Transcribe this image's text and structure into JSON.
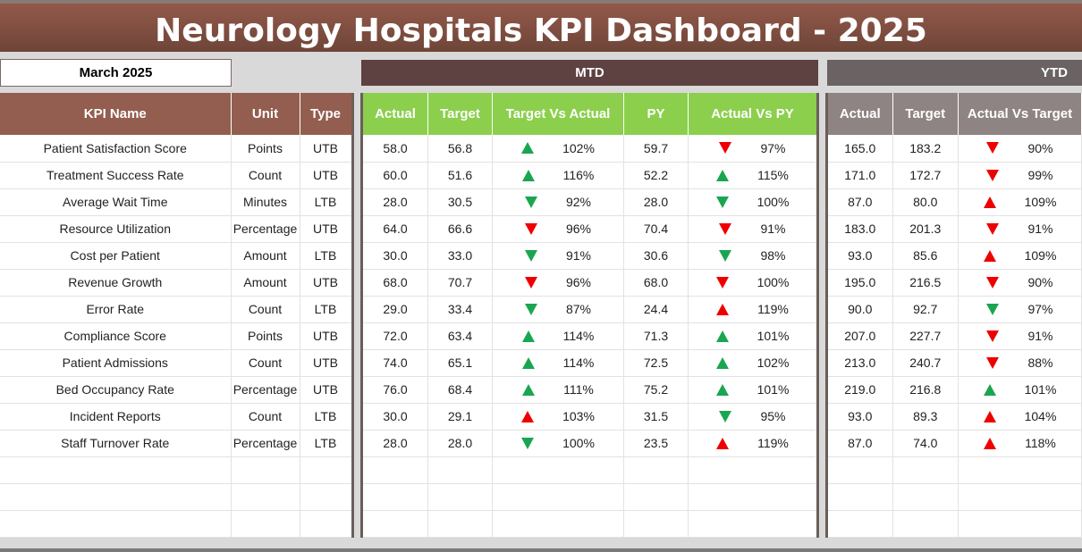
{
  "title": "Neurology Hospitals KPI Dashboard - 2025",
  "month": "March 2025",
  "mtd_label": "MTD",
  "ytd_label": "YTD",
  "headers": {
    "kpi": "KPI Name",
    "unit": "Unit",
    "type": "Type",
    "actual": "Actual",
    "target": "Target",
    "tva": "Target Vs Actual",
    "py": "PY",
    "avpy": "Actual Vs PY",
    "ytd_actual": "Actual",
    "ytd_target": "Target",
    "ytd_avt": "Actual Vs Target"
  },
  "colors": {
    "up_good": "#1aa651",
    "bad": "#e00000",
    "mtd_header": "#8ccf4d",
    "kpi_header": "#935e50",
    "ytd_header": "#8f8484"
  },
  "rows": [
    {
      "name": "Patient Satisfaction Score",
      "unit": "Points",
      "type": "UTB",
      "actual": "58.0",
      "target": "56.8",
      "tva": "102%",
      "tva_icon": "up green",
      "py": "59.7",
      "avpy": "97%",
      "avpy_icon": "down red",
      "y_actual": "165.0",
      "y_target": "183.2",
      "y_avt": "90%",
      "y_icon": "down red"
    },
    {
      "name": "Treatment Success Rate",
      "unit": "Count",
      "type": "UTB",
      "actual": "60.0",
      "target": "51.6",
      "tva": "116%",
      "tva_icon": "up green",
      "py": "52.2",
      "avpy": "115%",
      "avpy_icon": "up green",
      "y_actual": "171.0",
      "y_target": "172.7",
      "y_avt": "99%",
      "y_icon": "down red"
    },
    {
      "name": "Average Wait Time",
      "unit": "Minutes",
      "type": "LTB",
      "actual": "28.0",
      "target": "30.5",
      "tva": "92%",
      "tva_icon": "down green",
      "py": "28.0",
      "avpy": "100%",
      "avpy_icon": "down green",
      "y_actual": "87.0",
      "y_target": "80.0",
      "y_avt": "109%",
      "y_icon": "up red"
    },
    {
      "name": "Resource Utilization",
      "unit": "Percentage",
      "type": "UTB",
      "actual": "64.0",
      "target": "66.6",
      "tva": "96%",
      "tva_icon": "down red",
      "py": "70.4",
      "avpy": "91%",
      "avpy_icon": "down red",
      "y_actual": "183.0",
      "y_target": "201.3",
      "y_avt": "91%",
      "y_icon": "down red"
    },
    {
      "name": "Cost per Patient",
      "unit": "Amount",
      "type": "LTB",
      "actual": "30.0",
      "target": "33.0",
      "tva": "91%",
      "tva_icon": "down green",
      "py": "30.6",
      "avpy": "98%",
      "avpy_icon": "down green",
      "y_actual": "93.0",
      "y_target": "85.6",
      "y_avt": "109%",
      "y_icon": "up red"
    },
    {
      "name": "Revenue Growth",
      "unit": "Amount",
      "type": "UTB",
      "actual": "68.0",
      "target": "70.7",
      "tva": "96%",
      "tva_icon": "down red",
      "py": "68.0",
      "avpy": "100%",
      "avpy_icon": "down red",
      "y_actual": "195.0",
      "y_target": "216.5",
      "y_avt": "90%",
      "y_icon": "down red"
    },
    {
      "name": "Error Rate",
      "unit": "Count",
      "type": "LTB",
      "actual": "29.0",
      "target": "33.4",
      "tva": "87%",
      "tva_icon": "down green",
      "py": "24.4",
      "avpy": "119%",
      "avpy_icon": "up red",
      "y_actual": "90.0",
      "y_target": "92.7",
      "y_avt": "97%",
      "y_icon": "down green"
    },
    {
      "name": "Compliance Score",
      "unit": "Points",
      "type": "UTB",
      "actual": "72.0",
      "target": "63.4",
      "tva": "114%",
      "tva_icon": "up green",
      "py": "71.3",
      "avpy": "101%",
      "avpy_icon": "up green",
      "y_actual": "207.0",
      "y_target": "227.7",
      "y_avt": "91%",
      "y_icon": "down red"
    },
    {
      "name": "Patient Admissions",
      "unit": "Count",
      "type": "UTB",
      "actual": "74.0",
      "target": "65.1",
      "tva": "114%",
      "tva_icon": "up green",
      "py": "72.5",
      "avpy": "102%",
      "avpy_icon": "up green",
      "y_actual": "213.0",
      "y_target": "240.7",
      "y_avt": "88%",
      "y_icon": "down red"
    },
    {
      "name": "Bed Occupancy Rate",
      "unit": "Percentage",
      "type": "UTB",
      "actual": "76.0",
      "target": "68.4",
      "tva": "111%",
      "tva_icon": "up green",
      "py": "75.2",
      "avpy": "101%",
      "avpy_icon": "up green",
      "y_actual": "219.0",
      "y_target": "216.8",
      "y_avt": "101%",
      "y_icon": "up green"
    },
    {
      "name": "Incident Reports",
      "unit": "Count",
      "type": "LTB",
      "actual": "30.0",
      "target": "29.1",
      "tva": "103%",
      "tva_icon": "up red",
      "py": "31.5",
      "avpy": "95%",
      "avpy_icon": "down green",
      "y_actual": "93.0",
      "y_target": "89.3",
      "y_avt": "104%",
      "y_icon": "up red"
    },
    {
      "name": "Staff Turnover Rate",
      "unit": "Percentage",
      "type": "LTB",
      "actual": "28.0",
      "target": "28.0",
      "tva": "100%",
      "tva_icon": "down green",
      "py": "23.5",
      "avpy": "119%",
      "avpy_icon": "up red",
      "y_actual": "87.0",
      "y_target": "74.0",
      "y_avt": "118%",
      "y_icon": "up red"
    }
  ]
}
